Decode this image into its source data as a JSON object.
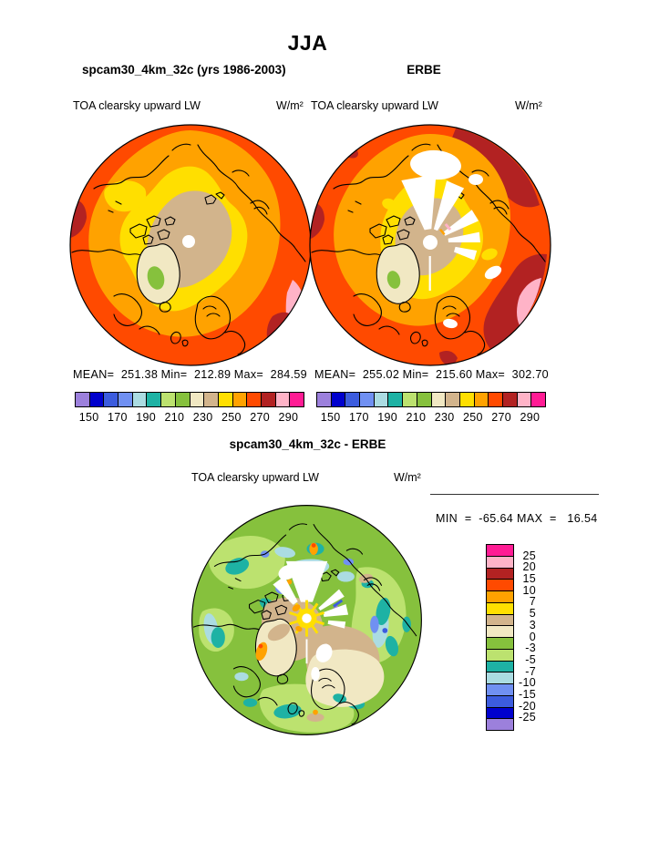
{
  "season": "JJA",
  "panels": {
    "model": {
      "title": "spcam30_4km_32c (yrs 1986-2003)",
      "variable": "TOA clearsky upward LW",
      "units": "W/m²",
      "stats": {
        "mean": "MEAN=  251.38",
        "min": "Min=  212.89",
        "max": "Max=  284.59"
      }
    },
    "obs": {
      "title": "ERBE",
      "variable": "TOA clearsky upward LW",
      "units": "W/m²",
      "stats": {
        "mean": "MEAN=  255.02",
        "min": "Min=  215.60",
        "max": "Max=  302.70"
      }
    },
    "diff": {
      "title": "spcam30_4km_32c - ERBE",
      "variable": "TOA clearsky upward LW",
      "units": "W/m²",
      "minmax": "MIN  =  -65.64 MAX  =   16.54"
    }
  },
  "palette": {
    "purple": "#9C80DC",
    "navy": "#0000CD",
    "royal": "#3C5CDE",
    "cornflower": "#7090F2",
    "palecyan": "#ABDCE2",
    "teal": "#1EB2A4",
    "lightgreen": "#BCE26F",
    "green": "#86C13D",
    "cream": "#F1E8C3",
    "tan": "#D2B48C",
    "yellow": "#FFDF00",
    "orange": "#FFA200",
    "redorange": "#FF4A00",
    "brick": "#B22222",
    "pink": "#FFB3C7",
    "magenta": "#FF1C94",
    "white": "#FFFFFF",
    "coast": "#000000"
  },
  "colorbar_h": {
    "ticks": [
      "150",
      "170",
      "190",
      "210",
      "230",
      "250",
      "270",
      "290"
    ],
    "colors": [
      "purple",
      "navy",
      "royal",
      "cornflower",
      "palecyan",
      "teal",
      "lightgreen",
      "green",
      "cream",
      "tan",
      "yellow",
      "orange",
      "redorange",
      "brick",
      "pink",
      "magenta"
    ]
  },
  "colorbar_v": {
    "labels": [
      "25",
      "20",
      "15",
      "10",
      "7",
      "5",
      "3",
      "0",
      "-3",
      "-5",
      "-7",
      "-10",
      "-15",
      "-20",
      "-25"
    ],
    "colors": [
      "magenta",
      "pink",
      "brick",
      "redorange",
      "orange",
      "yellow",
      "tan",
      "cream",
      "green",
      "lightgreen",
      "teal",
      "palecyan",
      "cornflower",
      "royal",
      "navy",
      "purple"
    ]
  },
  "chart_data": [
    {
      "type": "heatmap",
      "projection": "north polar stereographic",
      "season": "JJA",
      "title": "spcam30_4km_32c (yrs 1986-2003)",
      "variable": "TOA clearsky upward LW",
      "units": "W/m²",
      "mean": 251.38,
      "min": 212.89,
      "max": 284.59,
      "levels": [
        150,
        160,
        170,
        180,
        190,
        200,
        210,
        220,
        230,
        240,
        250,
        260,
        270,
        280,
        290
      ],
      "colors_low_to_high": [
        "#9C80DC",
        "#0000CD",
        "#3C5CDE",
        "#7090F2",
        "#ABDCE2",
        "#1EB2A4",
        "#BCE26F",
        "#86C13D",
        "#F1E8C3",
        "#D2B48C",
        "#FFDF00",
        "#FFA200",
        "#FF4A00",
        "#B22222",
        "#FFB3C7",
        "#FF1C94"
      ],
      "legend_position": "below"
    },
    {
      "type": "heatmap",
      "projection": "north polar stereographic",
      "season": "JJA",
      "title": "ERBE",
      "variable": "TOA clearsky upward LW",
      "units": "W/m²",
      "mean": 255.02,
      "min": 215.6,
      "max": 302.7,
      "levels": [
        150,
        160,
        170,
        180,
        190,
        200,
        210,
        220,
        230,
        240,
        250,
        260,
        270,
        280,
        290
      ],
      "colors_low_to_high": [
        "#9C80DC",
        "#0000CD",
        "#3C5CDE",
        "#7090F2",
        "#ABDCE2",
        "#1EB2A4",
        "#BCE26F",
        "#86C13D",
        "#F1E8C3",
        "#D2B48C",
        "#FFDF00",
        "#FFA200",
        "#FF4A00",
        "#B22222",
        "#FFB3C7",
        "#FF1C94"
      ],
      "legend_position": "below"
    },
    {
      "type": "heatmap",
      "projection": "north polar stereographic",
      "season": "JJA",
      "title": "spcam30_4km_32c - ERBE",
      "variable": "TOA clearsky upward LW",
      "units": "W/m²",
      "min": -65.64,
      "max": 16.54,
      "levels": [
        -25,
        -20,
        -15,
        -10,
        -7,
        -5,
        -3,
        0,
        3,
        5,
        7,
        10,
        15,
        20,
        25
      ],
      "colors_low_to_high": [
        "#9C80DC",
        "#0000CD",
        "#3C5CDE",
        "#7090F2",
        "#ABDCE2",
        "#1EB2A4",
        "#BCE26F",
        "#86C13D",
        "#F1E8C3",
        "#D2B48C",
        "#FFDF00",
        "#FFA200",
        "#FF4A00",
        "#B22222",
        "#FFB3C7",
        "#FF1C94"
      ],
      "legend_position": "right"
    }
  ]
}
